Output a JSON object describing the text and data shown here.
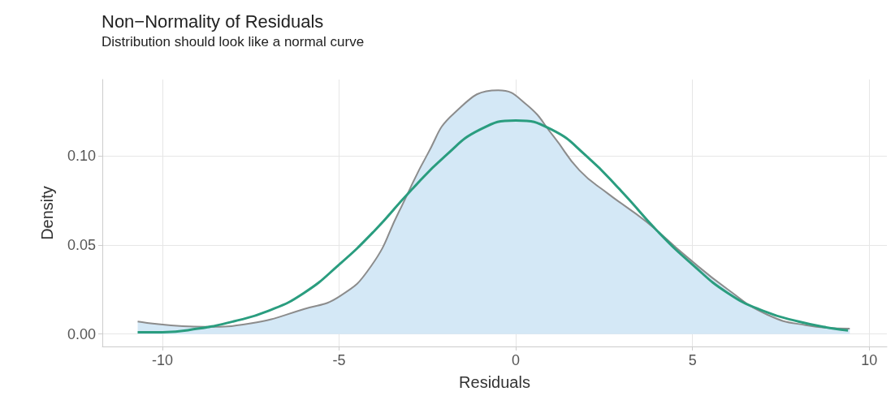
{
  "chart_data": {
    "type": "area",
    "title": "Non−Normality of Residuals",
    "subtitle": "Distribution should look like a normal curve",
    "xlabel": "Residuals",
    "ylabel": "Density",
    "series": [
      {
        "color": "#8c8c8c",
        "x": [
          -10.7,
          -8.8,
          -7.5,
          -6.0,
          -5.0,
          -4.1,
          -3.3,
          -2.5,
          -1.75,
          -0.5,
          0.3,
          1.07,
          1.8,
          2.6,
          3.7,
          4.8,
          6.0,
          7.1,
          8.2,
          9.45
        ],
        "values": [
          0.007,
          0.004,
          0.006,
          0.014,
          0.021,
          0.038,
          0.069,
          0.101,
          0.124,
          0.137,
          0.129,
          0.111,
          0.092,
          0.079,
          0.063,
          0.044,
          0.025,
          0.011,
          0.005,
          0.003
        ]
      },
      {
        "type": "line",
        "color": "#2a9d7f",
        "x": [
          -10.7,
          -10,
          -9,
          -8,
          -7,
          -6,
          -5,
          -4,
          -3,
          -2,
          -1,
          0,
          1,
          2,
          3,
          4,
          5,
          6,
          7,
          8,
          9,
          9.4
        ],
        "values": [
          0.001,
          0.001,
          0.003,
          0.007,
          0.013,
          0.023,
          0.039,
          0.058,
          0.08,
          0.1,
          0.115,
          0.12,
          0.115,
          0.1,
          0.08,
          0.058,
          0.039,
          0.023,
          0.013,
          0.007,
          0.003,
          0.002
        ]
      }
    ],
    "xlim": [
      -11.7,
      10.5
    ],
    "xticks": [
      -10,
      -5,
      0,
      5,
      10
    ],
    "ylim": [
      -0.007,
      0.143
    ],
    "yticks": [
      {
        "value": 0,
        "label": "0.00"
      },
      {
        "value": 0.05,
        "label": "0.05"
      },
      {
        "value": 0.1,
        "label": "0.10"
      }
    ],
    "grid": true
  }
}
